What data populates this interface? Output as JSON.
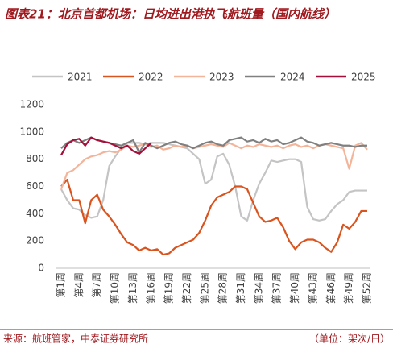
{
  "chart_data": {
    "type": "line",
    "title": "图表21：北京首都机场：日均进出港执飞航班量（国内航线）",
    "source": "来源：航班管家，中泰证券研究所",
    "unit": "（单位：架次/日）",
    "categories": [
      "第1周",
      null,
      null,
      "第4周",
      null,
      null,
      "第7周",
      null,
      null,
      "第10周",
      null,
      null,
      "第13周",
      null,
      null,
      "第16周",
      null,
      null,
      "第19周",
      null,
      null,
      "第22周",
      null,
      null,
      "第25周",
      null,
      null,
      "第28周",
      null,
      null,
      "第31周",
      null,
      null,
      "第34周",
      null,
      null,
      "第37周",
      null,
      null,
      "第40周",
      null,
      null,
      "第43周",
      null,
      null,
      "第46周",
      null,
      null,
      "第49周",
      null,
      null,
      "第52周"
    ],
    "ylim": [
      0,
      1200
    ],
    "yticks": [
      0,
      200,
      400,
      600,
      800,
      1000,
      1200
    ],
    "series": [
      {
        "name": "2021",
        "color": "#c4c4c4",
        "values": [
          580,
          500,
          440,
          430,
          390,
          370,
          380,
          500,
          750,
          820,
          880,
          920,
          920,
          920,
          910,
          920,
          920,
          920,
          910,
          900,
          890,
          880,
          840,
          800,
          620,
          650,
          820,
          840,
          760,
          600,
          380,
          350,
          500,
          620,
          700,
          790,
          780,
          790,
          800,
          800,
          780,
          450,
          360,
          350,
          360,
          420,
          470,
          500,
          560,
          570,
          570,
          570
        ]
      },
      {
        "name": "2022",
        "color": "#d9541e",
        "values": [
          600,
          650,
          500,
          500,
          330,
          500,
          540,
          430,
          380,
          320,
          250,
          190,
          170,
          130,
          150,
          130,
          140,
          100,
          110,
          150,
          170,
          190,
          210,
          260,
          350,
          460,
          520,
          540,
          560,
          600,
          600,
          580,
          480,
          380,
          340,
          350,
          370,
          300,
          200,
          140,
          190,
          210,
          210,
          190,
          150,
          120,
          190,
          320,
          290,
          340,
          420,
          420
        ]
      },
      {
        "name": "2023",
        "color": "#f4b49a",
        "values": [
          580,
          700,
          720,
          760,
          800,
          820,
          830,
          850,
          860,
          850,
          870,
          900,
          890,
          900,
          910,
          890,
          900,
          870,
          880,
          900,
          890,
          900,
          880,
          890,
          900,
          910,
          900,
          890,
          920,
          900,
          880,
          900,
          890,
          910,
          900,
          890,
          900,
          880,
          900,
          910,
          890,
          900,
          880,
          900,
          910,
          900,
          890,
          880,
          730,
          900,
          920,
          870
        ]
      },
      {
        "name": "2024",
        "color": "#808080",
        "values": [
          880,
          920,
          940,
          920,
          940,
          960,
          940,
          930,
          920,
          910,
          900,
          920,
          940,
          850,
          920,
          900,
          880,
          900,
          920,
          930,
          910,
          900,
          880,
          900,
          920,
          930,
          910,
          900,
          940,
          950,
          960,
          930,
          940,
          920,
          950,
          930,
          940,
          910,
          920,
          940,
          960,
          930,
          920,
          900,
          910,
          920,
          910,
          900,
          900,
          890,
          900,
          900
        ]
      },
      {
        "name": "2025",
        "color": "#a50f3a",
        "values": [
          830,
          910,
          940,
          950,
          900,
          960,
          940,
          930,
          920,
          900,
          880,
          900,
          860,
          840,
          880,
          920,
          null,
          null,
          null,
          null,
          null,
          null,
          null,
          null,
          null,
          null,
          null,
          null,
          null,
          null,
          null,
          null,
          null,
          null,
          null,
          null,
          null,
          null,
          null,
          null,
          null,
          null,
          null,
          null,
          null,
          null,
          null,
          null,
          null,
          null,
          null,
          null
        ]
      }
    ]
  }
}
